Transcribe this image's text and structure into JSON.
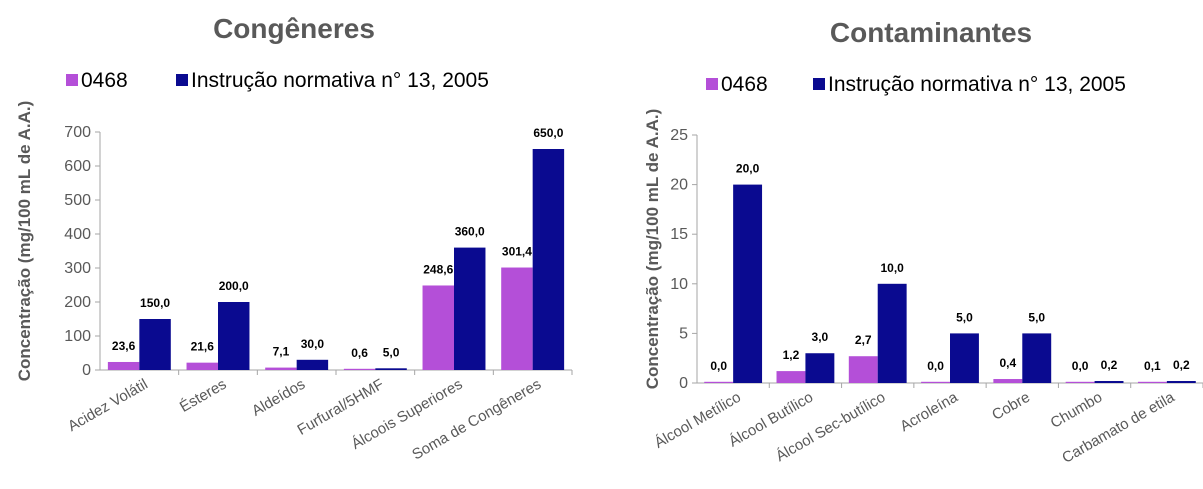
{
  "chart_data": [
    {
      "type": "bar",
      "title": "Congêneres",
      "ylabel": "Concentração (mg/100 mL de A.A.)",
      "xlabel": "",
      "ylim": [
        0,
        700
      ],
      "yticks": [
        "0",
        "100",
        "200",
        "300",
        "400",
        "500",
        "600",
        "700"
      ],
      "ytick_values": [
        0,
        100,
        200,
        300,
        400,
        500,
        600,
        700
      ],
      "categories": [
        "Acidez Volátil",
        "Ésteres",
        "Aldeídos",
        "Furfural/5HMF",
        "Álcoois Superiores",
        "Soma de Congêneres"
      ],
      "legend_position": "top",
      "grid": false,
      "series": [
        {
          "name": "0468",
          "color": "#b44fd8",
          "values": [
            23.6,
            21.6,
            7.1,
            0.6,
            248.6,
            301.4
          ],
          "labels": [
            "23,6",
            "21,6",
            "7,1",
            "0,6",
            "248,6",
            "301,4"
          ]
        },
        {
          "name": "Instrução normativa n° 13, 2005",
          "color": "#0a0a90",
          "values": [
            150.0,
            200.0,
            30.0,
            5.0,
            360.0,
            650.0
          ],
          "labels": [
            "150,0",
            "200,0",
            "30,0",
            "5,0",
            "360,0",
            "650,0"
          ]
        }
      ]
    },
    {
      "type": "bar",
      "title": "Contaminantes",
      "ylabel": "Concentração (mg/100 mL de A.A.)",
      "xlabel": "",
      "ylim": [
        0,
        25
      ],
      "yticks": [
        "0",
        "5",
        "10",
        "15",
        "20",
        "25"
      ],
      "ytick_values": [
        0,
        5,
        10,
        15,
        20,
        25
      ],
      "categories": [
        "Álcool Metílico",
        "Álcool Butílico",
        "Álcool Sec-butílico",
        "Acroleína",
        "Cobre",
        "Chumbo",
        "Carbamato de etila"
      ],
      "legend_position": "top",
      "grid": false,
      "series": [
        {
          "name": "0468",
          "color": "#b44fd8",
          "values": [
            0.0,
            1.2,
            2.7,
            0.0,
            0.4,
            0.0,
            0.1
          ],
          "labels": [
            "0,0",
            "1,2",
            "2,7",
            "0,0",
            "0,4",
            "0,0",
            "0,1"
          ]
        },
        {
          "name": "Instrução normativa n° 13, 2005",
          "color": "#0a0a90",
          "values": [
            20.0,
            3.0,
            10.0,
            5.0,
            5.0,
            0.2,
            0.2
          ],
          "labels": [
            "20,0",
            "3,0",
            "10,0",
            "5,0",
            "5,0",
            "0,2",
            "0,2"
          ]
        }
      ]
    }
  ]
}
